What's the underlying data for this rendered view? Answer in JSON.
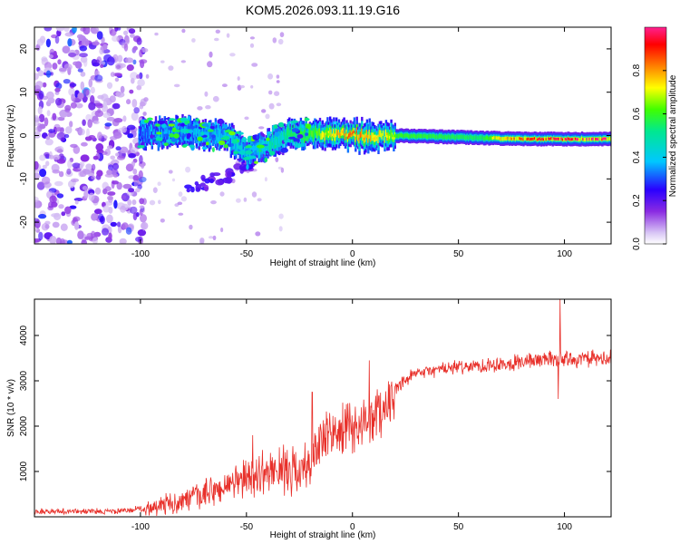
{
  "title": "KOM5.2026.093.11.19.G16",
  "chart_data": [
    {
      "type": "heatmap",
      "xlabel": "Height of straight line (km)",
      "ylabel": "Frequency (Hz)",
      "xlim": [
        -150,
        122
      ],
      "ylim": [
        -25,
        25
      ],
      "xticks": [
        -100,
        -50,
        0,
        50,
        100
      ],
      "yticks": [
        -20,
        -10,
        0,
        10,
        20
      ],
      "xtick_labels": [
        "-100",
        "-50",
        "0",
        "50",
        "100"
      ],
      "ytick_labels": [
        "-20",
        "-10",
        "0",
        "10",
        "20"
      ],
      "colorbar": {
        "label": "Normalized spectral amplitude",
        "range": [
          0,
          1
        ],
        "ticks": [
          0.0,
          0.2,
          0.4,
          0.6,
          0.8
        ],
        "tick_labels": [
          "0.0",
          "0.2",
          "0.4",
          "0.6",
          "0.8"
        ]
      },
      "trace": {
        "description_points": [
          [
            -100,
            0.3
          ],
          [
            -80,
            0.8
          ],
          [
            -60,
            0.0
          ],
          [
            -50,
            -4.0
          ],
          [
            -40,
            -2.0
          ],
          [
            -30,
            0.5
          ],
          [
            -20,
            0.6
          ],
          [
            -10,
            0.3
          ],
          [
            0,
            0.1
          ],
          [
            10,
            -0.2
          ],
          [
            20,
            0.0
          ],
          [
            50,
            -0.4
          ],
          [
            80,
            -0.8
          ],
          [
            100,
            -0.8
          ],
          [
            120,
            -0.8
          ]
        ],
        "amplitude_points": [
          [
            -100,
            0.25
          ],
          [
            -50,
            0.3
          ],
          [
            -20,
            0.5
          ],
          [
            0,
            0.8
          ],
          [
            20,
            0.6
          ],
          [
            60,
            0.55
          ],
          [
            80,
            0.85
          ],
          [
            120,
            0.95
          ]
        ]
      }
    },
    {
      "type": "line",
      "xlabel": "Height of straight line (km)",
      "ylabel": "SNR (10 * v/v)",
      "xlim": [
        -150,
        122
      ],
      "ylim": [
        0,
        4800
      ],
      "xticks": [
        -100,
        -50,
        0,
        50,
        100
      ],
      "yticks": [
        1000,
        2000,
        3000,
        4000
      ],
      "xtick_labels": [
        "-100",
        "-50",
        "0",
        "50",
        "100"
      ],
      "ytick_labels": [
        "1000",
        "2000",
        "3000",
        "4000"
      ],
      "series": [
        {
          "name": "SNR",
          "color": "#e8302a",
          "trend": [
            [
              -150,
              120
            ],
            [
              -110,
              120
            ],
            [
              -100,
              180
            ],
            [
              -90,
              250
            ],
            [
              -80,
              350
            ],
            [
              -70,
              480
            ],
            [
              -60,
              650
            ],
            [
              -50,
              850
            ],
            [
              -40,
              1000
            ],
            [
              -30,
              1050
            ],
            [
              -20,
              1050
            ],
            [
              -18,
              1500
            ],
            [
              -10,
              1800
            ],
            [
              0,
              1950
            ],
            [
              5,
              2050
            ],
            [
              10,
              2200
            ],
            [
              15,
              2450
            ],
            [
              20,
              2750
            ],
            [
              25,
              3000
            ],
            [
              30,
              3150
            ],
            [
              40,
              3250
            ],
            [
              50,
              3300
            ],
            [
              60,
              3330
            ],
            [
              70,
              3380
            ],
            [
              80,
              3420
            ],
            [
              90,
              3480
            ],
            [
              100,
              3480
            ],
            [
              110,
              3480
            ],
            [
              122,
              3480
            ]
          ],
          "spikes": [
            [
              -47,
              1800
            ],
            [
              -19,
              2750
            ],
            [
              8,
              3450
            ],
            [
              98,
              4800
            ],
            [
              97,
              2600
            ]
          ]
        }
      ]
    }
  ]
}
